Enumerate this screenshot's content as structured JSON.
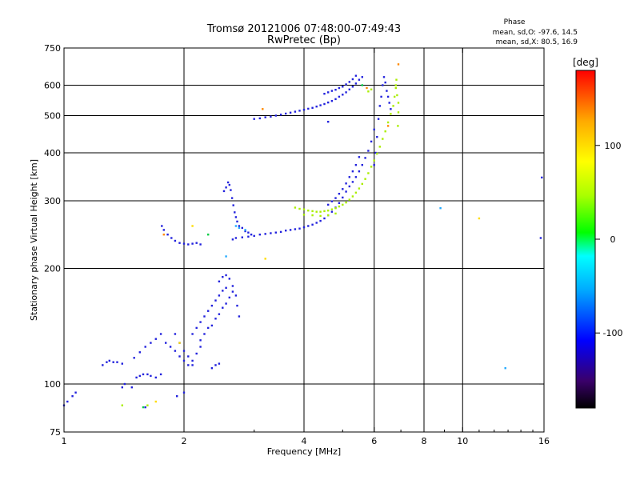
{
  "chart_data": {
    "type": "scatter",
    "title": "Tromsø 20121006 07:48:00-07:49:43",
    "subtitle": "RwPretec (Bp)",
    "xlabel": "Frequency [MHz]",
    "ylabel": "Stationary phase Virtual Height [km]",
    "x_scale": "log",
    "y_scale": "log",
    "xlim": [
      1,
      16
    ],
    "ylim": [
      75,
      750
    ],
    "x_ticks": [
      1,
      2,
      4,
      6,
      8,
      10,
      16
    ],
    "y_ticks": [
      75,
      100,
      200,
      300,
      400,
      500,
      600,
      750
    ],
    "x_grid": [
      2,
      4,
      6,
      8,
      10
    ],
    "y_grid": [
      100,
      200,
      300,
      400,
      500,
      600
    ],
    "grid": true,
    "phase_header": {
      "title": "Phase",
      "line1": "mean, sd,O:  -97.6, 14.5",
      "line2": "mean, sd,X:   80.5, 16.9"
    },
    "colorbar": {
      "label": "[deg]",
      "range": [
        -180,
        180
      ],
      "ticks": [
        100,
        0,
        -100
      ],
      "colors": [
        "#000000",
        "#3a006a",
        "#0000ff",
        "#00aaff",
        "#00ffff",
        "#00ff00",
        "#aaff00",
        "#ffff00",
        "#ffaa00",
        "#ff0000"
      ]
    },
    "series": [
      {
        "color": "#2222dd",
        "points": [
          [
            1.0,
            88
          ],
          [
            1.02,
            90
          ],
          [
            1.05,
            93
          ],
          [
            1.07,
            95
          ],
          [
            1.25,
            112
          ],
          [
            1.28,
            114
          ],
          [
            1.3,
            115
          ],
          [
            1.33,
            114
          ],
          [
            1.36,
            114
          ],
          [
            1.4,
            113
          ],
          [
            1.4,
            98
          ],
          [
            1.42,
            100
          ],
          [
            1.48,
            98
          ],
          [
            1.6,
            87
          ],
          [
            1.52,
            104
          ],
          [
            1.55,
            105
          ],
          [
            1.58,
            106
          ],
          [
            1.62,
            106
          ],
          [
            1.65,
            105
          ],
          [
            1.7,
            104
          ],
          [
            1.75,
            106
          ],
          [
            1.5,
            117
          ],
          [
            1.55,
            121
          ],
          [
            1.6,
            125
          ],
          [
            1.65,
            128
          ],
          [
            1.7,
            131
          ],
          [
            1.75,
            135
          ],
          [
            1.8,
            128
          ],
          [
            1.85,
            125
          ],
          [
            1.9,
            122
          ],
          [
            1.95,
            118
          ],
          [
            2.0,
            115
          ],
          [
            2.05,
            112
          ],
          [
            2.1,
            112
          ],
          [
            1.9,
            135
          ],
          [
            1.95,
            128
          ],
          [
            2.0,
            122
          ],
          [
            2.05,
            118
          ],
          [
            2.1,
            115
          ],
          [
            2.15,
            120
          ],
          [
            2.2,
            125
          ],
          [
            2.1,
            135
          ],
          [
            2.15,
            140
          ],
          [
            2.2,
            145
          ],
          [
            2.25,
            150
          ],
          [
            2.3,
            155
          ],
          [
            2.35,
            160
          ],
          [
            2.4,
            165
          ],
          [
            2.45,
            170
          ],
          [
            2.5,
            175
          ],
          [
            2.55,
            178
          ],
          [
            2.2,
            130
          ],
          [
            2.25,
            135
          ],
          [
            2.3,
            140
          ],
          [
            2.35,
            142
          ],
          [
            2.4,
            148
          ],
          [
            2.45,
            152
          ],
          [
            2.5,
            158
          ],
          [
            2.55,
            162
          ],
          [
            2.6,
            168
          ],
          [
            2.65,
            174
          ],
          [
            2.45,
            185
          ],
          [
            2.5,
            190
          ],
          [
            2.55,
            192
          ],
          [
            2.6,
            188
          ],
          [
            2.65,
            180
          ],
          [
            2.7,
            170
          ],
          [
            2.72,
            160
          ],
          [
            2.75,
            150
          ],
          [
            2.35,
            110
          ],
          [
            2.4,
            112
          ],
          [
            2.45,
            113
          ],
          [
            2.0,
            95
          ],
          [
            1.92,
            93
          ],
          [
            1.76,
            258
          ],
          [
            1.78,
            252
          ],
          [
            1.82,
            245
          ],
          [
            1.86,
            240
          ],
          [
            1.9,
            236
          ],
          [
            1.95,
            233
          ],
          [
            2.0,
            232
          ],
          [
            2.05,
            231
          ],
          [
            2.1,
            232
          ],
          [
            2.15,
            233
          ],
          [
            2.2,
            231
          ],
          [
            2.52,
            318
          ],
          [
            2.55,
            325
          ],
          [
            2.58,
            335
          ],
          [
            2.6,
            330
          ],
          [
            2.62,
            320
          ],
          [
            2.64,
            305
          ],
          [
            2.66,
            292
          ],
          [
            2.68,
            280
          ],
          [
            2.7,
            272
          ],
          [
            2.72,
            265
          ],
          [
            2.75,
            258
          ],
          [
            2.8,
            255
          ],
          [
            2.85,
            250
          ],
          [
            2.9,
            248
          ],
          [
            2.95,
            245
          ],
          [
            2.65,
            238
          ],
          [
            2.7,
            240
          ],
          [
            2.8,
            241
          ],
          [
            2.9,
            242
          ],
          [
            3.0,
            243
          ],
          [
            3.1,
            245
          ],
          [
            3.2,
            246
          ],
          [
            3.3,
            247
          ],
          [
            3.4,
            248
          ],
          [
            3.5,
            249
          ],
          [
            3.6,
            251
          ],
          [
            3.7,
            252
          ],
          [
            3.8,
            253
          ],
          [
            3.9,
            254
          ],
          [
            4.0,
            256
          ],
          [
            4.1,
            258
          ],
          [
            4.2,
            260
          ],
          [
            4.3,
            263
          ],
          [
            4.4,
            266
          ],
          [
            4.5,
            270
          ],
          [
            4.6,
            275
          ],
          [
            4.7,
            281
          ],
          [
            4.8,
            288
          ],
          [
            4.9,
            296
          ],
          [
            5.0,
            306
          ],
          [
            5.1,
            317
          ],
          [
            5.2,
            327
          ],
          [
            5.3,
            336
          ],
          [
            5.4,
            346
          ],
          [
            5.5,
            358
          ],
          [
            5.6,
            372
          ],
          [
            5.7,
            388
          ],
          [
            5.8,
            405
          ],
          [
            5.9,
            428
          ],
          [
            6.0,
            460
          ],
          [
            4.6,
            293
          ],
          [
            4.7,
            299
          ],
          [
            4.8,
            305
          ],
          [
            4.9,
            313
          ],
          [
            5.0,
            322
          ],
          [
            5.1,
            333
          ],
          [
            5.2,
            346
          ],
          [
            5.3,
            358
          ],
          [
            5.4,
            372
          ],
          [
            5.5,
            390
          ],
          [
            6.0,
            372
          ],
          [
            6.05,
            400
          ],
          [
            6.1,
            440
          ],
          [
            6.15,
            490
          ],
          [
            6.2,
            530
          ],
          [
            6.25,
            560
          ],
          [
            6.3,
            600
          ],
          [
            6.35,
            630
          ],
          [
            6.4,
            610
          ],
          [
            6.45,
            580
          ],
          [
            6.5,
            560
          ],
          [
            6.55,
            540
          ],
          [
            6.6,
            520
          ],
          [
            3.0,
            490
          ],
          [
            3.1,
            492
          ],
          [
            3.2,
            495
          ],
          [
            3.3,
            497
          ],
          [
            3.4,
            500
          ],
          [
            3.5,
            503
          ],
          [
            3.6,
            506
          ],
          [
            3.7,
            509
          ],
          [
            3.8,
            512
          ],
          [
            3.9,
            515
          ],
          [
            4.0,
            518
          ],
          [
            4.1,
            521
          ],
          [
            4.2,
            524
          ],
          [
            4.3,
            528
          ],
          [
            4.4,
            532
          ],
          [
            4.5,
            536
          ],
          [
            4.6,
            541
          ],
          [
            4.7,
            546
          ],
          [
            4.8,
            552
          ],
          [
            4.9,
            560
          ],
          [
            5.0,
            567
          ],
          [
            5.1,
            575
          ],
          [
            5.2,
            585
          ],
          [
            5.3,
            595
          ],
          [
            5.4,
            606
          ],
          [
            5.5,
            620
          ],
          [
            5.6,
            630
          ],
          [
            4.5,
            570
          ],
          [
            4.6,
            575
          ],
          [
            4.7,
            580
          ],
          [
            4.8,
            584
          ],
          [
            4.9,
            590
          ],
          [
            5.0,
            595
          ],
          [
            5.1,
            603
          ],
          [
            5.2,
            612
          ],
          [
            5.3,
            622
          ],
          [
            5.4,
            635
          ],
          [
            4.6,
            482
          ],
          [
            15.7,
            240
          ],
          [
            15.8,
            345
          ]
        ]
      },
      {
        "color": "#aaee00",
        "points": [
          [
            3.8,
            288
          ],
          [
            3.9,
            286
          ],
          [
            4.0,
            285
          ],
          [
            4.1,
            283
          ],
          [
            4.2,
            282
          ],
          [
            4.3,
            281
          ],
          [
            4.4,
            281
          ],
          [
            4.5,
            282
          ],
          [
            4.6,
            283
          ],
          [
            4.7,
            285
          ],
          [
            4.8,
            287
          ],
          [
            4.9,
            290
          ],
          [
            5.0,
            293
          ],
          [
            5.1,
            297
          ],
          [
            5.2,
            302
          ],
          [
            5.3,
            308
          ],
          [
            5.4,
            315
          ],
          [
            5.5,
            323
          ],
          [
            5.6,
            332
          ],
          [
            5.7,
            342
          ],
          [
            5.8,
            354
          ],
          [
            5.9,
            368
          ],
          [
            6.0,
            382
          ],
          [
            6.1,
            398
          ],
          [
            6.2,
            415
          ],
          [
            4.0,
            276
          ],
          [
            4.2,
            275
          ],
          [
            4.4,
            274
          ],
          [
            4.6,
            275
          ],
          [
            4.8,
            278
          ],
          [
            6.3,
            435
          ],
          [
            6.4,
            455
          ],
          [
            6.5,
            480
          ],
          [
            6.6,
            505
          ],
          [
            6.7,
            530
          ],
          [
            6.75,
            560
          ],
          [
            6.8,
            590
          ],
          [
            6.82,
            620
          ],
          [
            5.9,
            585
          ],
          [
            5.8,
            578
          ],
          [
            6.8,
            600
          ],
          [
            6.85,
            565
          ],
          [
            6.9,
            540
          ],
          [
            6.9,
            510
          ],
          [
            6.88,
            470
          ],
          [
            1.4,
            88
          ],
          [
            1.62,
            88
          ]
        ]
      },
      {
        "color": "#22aaff",
        "points": [
          [
            2.7,
            258
          ],
          [
            2.75,
            255
          ],
          [
            2.85,
            252
          ],
          [
            2.55,
            215
          ],
          [
            8.8,
            287
          ],
          [
            12.8,
            110
          ]
        ]
      },
      {
        "color": "#ff8800",
        "points": [
          [
            6.9,
            680
          ],
          [
            3.15,
            520
          ],
          [
            6.5,
            470
          ],
          [
            1.78,
            245
          ],
          [
            5.75,
            590
          ]
        ]
      },
      {
        "color": "#ffdd00",
        "points": [
          [
            11.0,
            270
          ],
          [
            3.2,
            212
          ],
          [
            2.1,
            258
          ],
          [
            1.7,
            90
          ],
          [
            1.95,
            128
          ]
        ]
      },
      {
        "color": "#00cc44",
        "points": [
          [
            1.58,
            87
          ],
          [
            2.3,
            245
          ],
          [
            5.6,
            600
          ]
        ]
      }
    ]
  }
}
